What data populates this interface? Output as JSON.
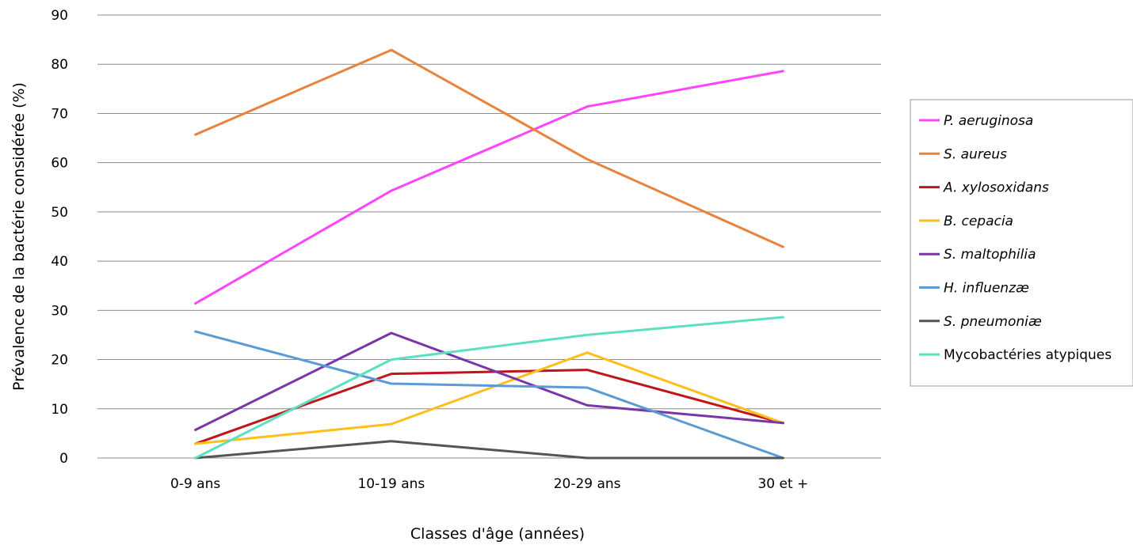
{
  "chart_data": {
    "type": "line",
    "title": "",
    "xlabel": "Classes d'âge (années)",
    "ylabel": "Prévalence de la bactérie considérée (%)",
    "categories": [
      "0-9 ans",
      "10-19 ans",
      "20-29 ans",
      "30 et +"
    ],
    "ylim": [
      0,
      90
    ],
    "yticks": [
      0,
      10,
      20,
      30,
      40,
      50,
      60,
      70,
      80,
      90
    ],
    "grid": true,
    "legend_position": "right",
    "series": [
      {
        "name": "P. aeruginosa",
        "color": "#ff44ff",
        "italic": true,
        "values": [
          31.4,
          54.3,
          71.4,
          78.6
        ]
      },
      {
        "name": "S. aureus",
        "color": "#e8823c",
        "italic": true,
        "values": [
          65.7,
          82.9,
          60.7,
          42.9
        ]
      },
      {
        "name": "A. xylosoxidans",
        "color": "#c0161b",
        "italic": true,
        "values": [
          2.9,
          17.1,
          17.9,
          7.1
        ]
      },
      {
        "name": "B. cepacia",
        "color": "#ffbe1a",
        "italic": true,
        "values": [
          2.9,
          6.9,
          21.4,
          7.1
        ]
      },
      {
        "name": "S. maltophilia",
        "color": "#7a35a8",
        "italic": true,
        "values": [
          5.7,
          25.4,
          10.7,
          7.1
        ]
      },
      {
        "name": "H. influenzæ",
        "color": "#5b9bd5",
        "italic": true,
        "values": [
          25.7,
          15.1,
          14.3,
          0
        ]
      },
      {
        "name": "S. pneumoniæ",
        "color": "#555555",
        "italic": true,
        "values": [
          0,
          3.4,
          0,
          0
        ]
      },
      {
        "name": "Mycobactéries atypiques",
        "color": "#5de0c0",
        "italic": false,
        "values": [
          0,
          20,
          25,
          28.6
        ]
      }
    ]
  }
}
